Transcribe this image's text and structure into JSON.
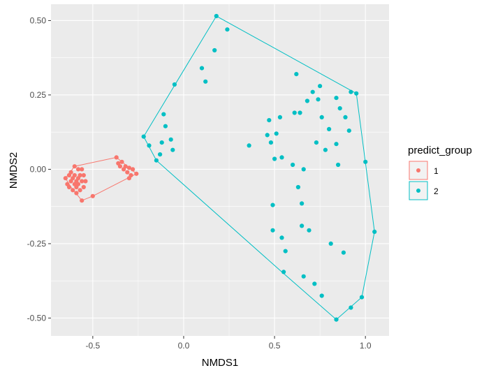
{
  "chart_data": {
    "type": "scatter",
    "title": "",
    "xlabel": "NMDS1",
    "ylabel": "NMDS2",
    "xlim": [
      -0.73,
      1.13
    ],
    "ylim": [
      -0.56,
      0.555
    ],
    "x_ticks": [
      -0.5,
      0.0,
      0.5,
      1.0
    ],
    "x_tick_labels": [
      "-0.5",
      "0.0",
      "0.5",
      "1.0"
    ],
    "y_ticks": [
      -0.5,
      -0.25,
      0.0,
      0.25,
      0.5
    ],
    "y_tick_labels": [
      "-0.50",
      "-0.25",
      "0.00",
      "0.25",
      "0.50"
    ],
    "grid": true,
    "legend": {
      "title": "predict_group",
      "position": "right",
      "entries": [
        {
          "label": "1",
          "color": "#F8766D"
        },
        {
          "label": "2",
          "color": "#00BFC4"
        }
      ]
    },
    "series": [
      {
        "name": "1",
        "color": "#F8766D",
        "hull": [
          [
            -0.65,
            -0.03
          ],
          [
            -0.6,
            0.01
          ],
          [
            -0.37,
            0.04
          ],
          [
            -0.26,
            -0.015
          ],
          [
            -0.5,
            -0.09
          ],
          [
            -0.56,
            -0.105
          ],
          [
            -0.62,
            -0.06
          ]
        ],
        "points": [
          [
            -0.65,
            -0.03
          ],
          [
            -0.64,
            -0.05
          ],
          [
            -0.63,
            -0.02
          ],
          [
            -0.63,
            -0.06
          ],
          [
            -0.62,
            -0.04
          ],
          [
            -0.62,
            -0.01
          ],
          [
            -0.61,
            -0.03
          ],
          [
            -0.61,
            -0.07
          ],
          [
            -0.6,
            0.01
          ],
          [
            -0.6,
            -0.05
          ],
          [
            -0.6,
            -0.02
          ],
          [
            -0.59,
            -0.04
          ],
          [
            -0.59,
            -0.06
          ],
          [
            -0.59,
            -0.08
          ],
          [
            -0.58,
            -0.03
          ],
          [
            -0.58,
            0.0
          ],
          [
            -0.58,
            -0.05
          ],
          [
            -0.57,
            -0.02
          ],
          [
            -0.57,
            -0.07
          ],
          [
            -0.56,
            -0.04
          ],
          [
            -0.56,
            -0.105
          ],
          [
            -0.56,
            0.0
          ],
          [
            -0.55,
            -0.02
          ],
          [
            -0.55,
            -0.06
          ],
          [
            -0.54,
            -0.04
          ],
          [
            -0.5,
            -0.09
          ],
          [
            -0.37,
            0.04
          ],
          [
            -0.36,
            0.02
          ],
          [
            -0.35,
            0.01
          ],
          [
            -0.34,
            0.025
          ],
          [
            -0.33,
            0.0
          ],
          [
            -0.32,
            0.01
          ],
          [
            -0.31,
            -0.01
          ],
          [
            -0.3,
            0.005
          ],
          [
            -0.3,
            -0.03
          ],
          [
            -0.29,
            -0.02
          ],
          [
            -0.28,
            0.0
          ],
          [
            -0.26,
            -0.015
          ]
        ]
      },
      {
        "name": "2",
        "color": "#00BFC4",
        "hull": [
          [
            -0.22,
            0.11
          ],
          [
            0.18,
            0.515
          ],
          [
            0.95,
            0.255
          ],
          [
            1.05,
            -0.21
          ],
          [
            0.98,
            -0.43
          ],
          [
            0.84,
            -0.505
          ],
          [
            0.54,
            -0.345
          ],
          [
            -0.15,
            0.03
          ]
        ],
        "points": [
          [
            -0.22,
            0.11
          ],
          [
            -0.19,
            0.08
          ],
          [
            -0.15,
            0.03
          ],
          [
            -0.13,
            0.05
          ],
          [
            -0.12,
            0.09
          ],
          [
            -0.11,
            0.185
          ],
          [
            -0.1,
            0.145
          ],
          [
            -0.07,
            0.1
          ],
          [
            -0.06,
            0.065
          ],
          [
            -0.05,
            0.285
          ],
          [
            0.1,
            0.34
          ],
          [
            0.12,
            0.295
          ],
          [
            0.17,
            0.4
          ],
          [
            0.18,
            0.515
          ],
          [
            0.24,
            0.47
          ],
          [
            0.36,
            0.08
          ],
          [
            0.46,
            0.115
          ],
          [
            0.47,
            0.165
          ],
          [
            0.48,
            0.09
          ],
          [
            0.5,
            0.035
          ],
          [
            0.51,
            0.12
          ],
          [
            0.53,
            0.175
          ],
          [
            0.54,
            0.04
          ],
          [
            0.49,
            -0.12
          ],
          [
            0.49,
            -0.205
          ],
          [
            0.54,
            -0.23
          ],
          [
            0.55,
            -0.345
          ],
          [
            0.56,
            -0.275
          ],
          [
            0.6,
            0.015
          ],
          [
            0.61,
            0.19
          ],
          [
            0.62,
            0.32
          ],
          [
            0.63,
            -0.06
          ],
          [
            0.64,
            0.19
          ],
          [
            0.65,
            -0.115
          ],
          [
            0.65,
            -0.19
          ],
          [
            0.66,
            -0.36
          ],
          [
            0.66,
            0.0
          ],
          [
            0.68,
            0.23
          ],
          [
            0.69,
            -0.205
          ],
          [
            0.71,
            0.26
          ],
          [
            0.72,
            -0.385
          ],
          [
            0.73,
            0.09
          ],
          [
            0.74,
            0.235
          ],
          [
            0.75,
            0.28
          ],
          [
            0.76,
            0.175
          ],
          [
            0.76,
            -0.425
          ],
          [
            0.78,
            0.065
          ],
          [
            0.8,
            0.135
          ],
          [
            0.81,
            -0.25
          ],
          [
            0.84,
            0.085
          ],
          [
            0.84,
            0.24
          ],
          [
            0.85,
            0.015
          ],
          [
            0.86,
            0.205
          ],
          [
            0.88,
            -0.28
          ],
          [
            0.89,
            0.175
          ],
          [
            0.91,
            0.13
          ],
          [
            0.92,
            -0.465
          ],
          [
            0.92,
            0.26
          ],
          [
            0.95,
            0.255
          ],
          [
            0.98,
            -0.43
          ],
          [
            1.0,
            0.025
          ],
          [
            1.05,
            -0.21
          ],
          [
            0.84,
            -0.505
          ]
        ]
      }
    ]
  }
}
